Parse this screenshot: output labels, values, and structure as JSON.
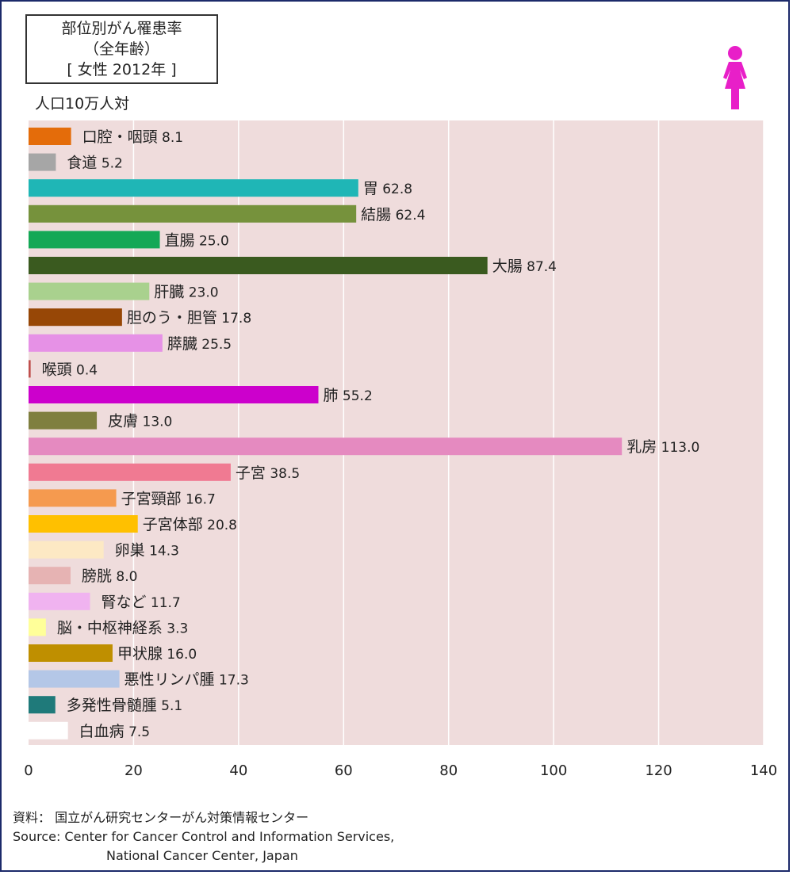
{
  "title": {
    "line1": "部位別がん罹患率",
    "line2": "（全年齢）",
    "line3": "[ 女性 2012年 ]"
  },
  "unit_label": "人口10万人対",
  "colors": {
    "plot_background": "#efdcdc",
    "grid": "#ffffff",
    "icon": "#e81fc8"
  },
  "icon": "female-figure-icon",
  "chart_data": {
    "type": "bar",
    "orientation": "horizontal",
    "title": "部位別がん罹患率",
    "xlabel": "",
    "ylabel": "",
    "xlim": [
      0,
      140
    ],
    "xticks": [
      0,
      20,
      40,
      60,
      80,
      100,
      120,
      140
    ],
    "grid": true,
    "categories": [
      {
        "label": "口腔・咽頭",
        "value": 8.1,
        "value_text": "8.1",
        "color": "#e46c0a"
      },
      {
        "label": "食道",
        "value": 5.2,
        "value_text": "5.2",
        "color": "#a6a6a6"
      },
      {
        "label": "胃",
        "value": 62.8,
        "value_text": "62.8",
        "color": "#1fb6b6"
      },
      {
        "label": "結腸",
        "value": 62.4,
        "value_text": "62.4",
        "color": "#76923c"
      },
      {
        "label": "直腸",
        "value": 25.0,
        "value_text": "25.0",
        "color": "#14a856"
      },
      {
        "label": "大腸",
        "value": 87.4,
        "value_text": "87.4",
        "color": "#3a5a1f"
      },
      {
        "label": "肝臓",
        "value": 23.0,
        "value_text": "23.0",
        "color": "#a9d18e"
      },
      {
        "label": "胆のう・胆管",
        "value": 17.8,
        "value_text": "17.8",
        "color": "#974706"
      },
      {
        "label": "膵臓",
        "value": 25.5,
        "value_text": "25.5",
        "color": "#e691e6"
      },
      {
        "label": "喉頭",
        "value": 0.4,
        "value_text": "0.4",
        "color": "#c0504d"
      },
      {
        "label": "肺",
        "value": 55.2,
        "value_text": "55.2",
        "color": "#cc00cc"
      },
      {
        "label": "皮膚",
        "value": 13.0,
        "value_text": "13.0",
        "color": "#7f7f3f"
      },
      {
        "label": "乳房",
        "value": 113.0,
        "value_text": "113.0",
        "color": "#e58ac0"
      },
      {
        "label": "子宮",
        "value": 38.5,
        "value_text": "38.5",
        "color": "#f07a92"
      },
      {
        "label": "子宮頸部",
        "value": 16.7,
        "value_text": "16.7",
        "color": "#f59a4f"
      },
      {
        "label": "子宮体部",
        "value": 20.8,
        "value_text": "20.8",
        "color": "#ffc000"
      },
      {
        "label": "卵巣",
        "value": 14.3,
        "value_text": "14.3",
        "color": "#fde9c4"
      },
      {
        "label": "膀胱",
        "value": 8.0,
        "value_text": "8.0",
        "color": "#e6b3b3"
      },
      {
        "label": "腎など",
        "value": 11.7,
        "value_text": "11.7",
        "color": "#f0b3f0"
      },
      {
        "label": "脳・中枢神経系",
        "value": 3.3,
        "value_text": "3.3",
        "color": "#ffff99"
      },
      {
        "label": "甲状腺",
        "value": 16.0,
        "value_text": "16.0",
        "color": "#bf8f00"
      },
      {
        "label": "悪性リンパ腫",
        "value": 17.3,
        "value_text": "17.3",
        "color": "#b4c7e7"
      },
      {
        "label": "多発性骨髄腫",
        "value": 5.1,
        "value_text": "5.1",
        "color": "#1f7a7a"
      },
      {
        "label": "白血病",
        "value": 7.5,
        "value_text": "7.5",
        "color": "#ffffff"
      }
    ]
  },
  "source": {
    "line1": "資料：  国立がん研究センターがん対策情報センター",
    "line2": "Source: Center for Cancer Control and Information Services,",
    "line3": "National Cancer Center, Japan"
  }
}
